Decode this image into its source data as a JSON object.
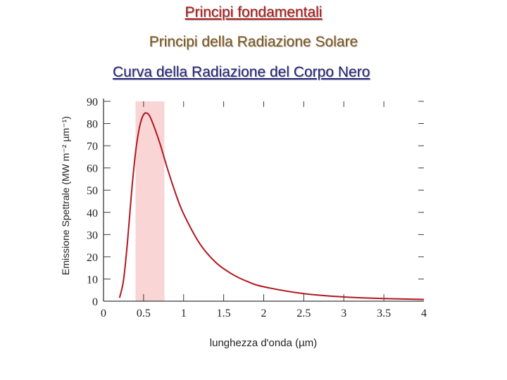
{
  "slide": {
    "title": "Principi fondamentali",
    "subtitle": "Principi della Radiazione Solare",
    "chart_heading": "Curva della Radiazione del Corpo Nero"
  },
  "colors": {
    "title": "#b01818",
    "subtitle": "#7a5418",
    "chart_heading": "#23237a",
    "curve": "#b0181e",
    "band": "#f9d5d5",
    "axis": "#3a3a3a"
  },
  "chart_data": {
    "type": "line",
    "title": "Curva della Radiazione del Corpo Nero",
    "xlabel": "lunghezza d'onda (µm)",
    "ylabel": "Emissione Spettrale (MW m⁻² µm⁻¹)",
    "xlim": [
      0,
      4
    ],
    "ylim": [
      0,
      90
    ],
    "x_ticks": [
      "0",
      "0.5",
      "1",
      "1.5",
      "2",
      "2.5",
      "3",
      "3.5",
      "4"
    ],
    "y_ticks": [
      "0",
      "10",
      "20",
      "30",
      "40",
      "50",
      "60",
      "70",
      "80",
      "90"
    ],
    "highlight_band": {
      "x_start": 0.4,
      "x_end": 0.76
    },
    "series": [
      {
        "x": [
          0.2,
          0.25,
          0.3,
          0.35,
          0.4,
          0.45,
          0.5,
          0.55,
          0.6,
          0.7,
          0.8,
          0.9,
          1.0,
          1.2,
          1.4,
          1.6,
          1.8,
          2.0,
          2.5,
          3.0,
          3.5,
          4.0
        ],
        "y": [
          1.5,
          9.5,
          27,
          49,
          67,
          78.5,
          84,
          84.5,
          81.5,
          71.5,
          59.5,
          48.5,
          39.3,
          26,
          17.5,
          12.3,
          8.8,
          6.5,
          3.4,
          1.9,
          1.2,
          0.8
        ]
      }
    ]
  }
}
